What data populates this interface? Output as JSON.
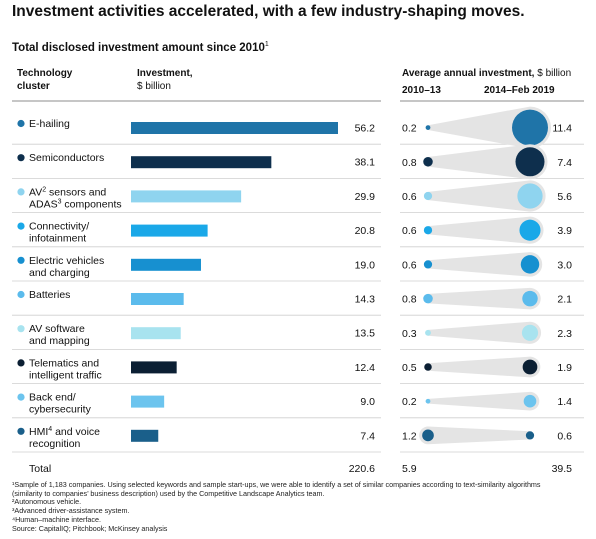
{
  "headline": "Investment activities accelerated, with a few industry-shaping moves.",
  "chart_data": {
    "type": "bar",
    "title": "Total disclosed investment amount since 2010",
    "title_sup": "1",
    "col_cluster": [
      "Technology",
      "cluster"
    ],
    "col_invest_bold": "Investment,",
    "col_invest_unit": "$ billion",
    "col_avg_bold": "Average annual investment,",
    "col_avg_unit": " $ billion",
    "period_a": "2010–13",
    "period_b": "2014–Feb 2019",
    "categories": [
      {
        "lines": [
          "E-hailing"
        ],
        "color": "#1f74a8",
        "investment": 56.2,
        "a": 0.2,
        "b": 11.4,
        "inv_label": "56.2",
        "a_label": "0.2",
        "b_label": "11.4"
      },
      {
        "lines": [
          "Semiconductors"
        ],
        "color": "#0e2f4d",
        "investment": 38.1,
        "a": 0.8,
        "b": 7.4,
        "inv_label": "38.1",
        "a_label": "0.8",
        "b_label": "7.4"
      },
      {
        "lines": [
          "AV",
          "sensors and",
          "ADAS",
          " components"
        ],
        "sups": [
          "2",
          "3"
        ],
        "color": "#8fd4ef",
        "investment": 29.9,
        "a": 0.6,
        "b": 5.6,
        "inv_label": "29.9",
        "a_label": "0.6",
        "b_label": "5.6"
      },
      {
        "lines": [
          "Connectivity/",
          "infotainment"
        ],
        "color": "#1aa8e8",
        "investment": 20.8,
        "a": 0.6,
        "b": 3.9,
        "inv_label": "20.8",
        "a_label": "0.6",
        "b_label": "3.9"
      },
      {
        "lines": [
          "Electric vehicles",
          "and charging"
        ],
        "color": "#1790d0",
        "investment": 19.0,
        "a": 0.6,
        "b": 3.0,
        "inv_label": "19.0",
        "a_label": "0.6",
        "b_label": "3.0"
      },
      {
        "lines": [
          "Batteries"
        ],
        "color": "#5bbbec",
        "investment": 14.3,
        "a": 0.8,
        "b": 2.1,
        "inv_label": "14.3",
        "a_label": "0.8",
        "b_label": "2.1"
      },
      {
        "lines": [
          "AV software",
          "and mapping"
        ],
        "color": "#a8e3ef",
        "investment": 13.5,
        "a": 0.3,
        "b": 2.3,
        "inv_label": "13.5",
        "a_label": "0.3",
        "b_label": "2.3"
      },
      {
        "lines": [
          "Telematics and",
          "intelligent traffic"
        ],
        "color": "#0b1f33",
        "investment": 12.4,
        "a": 0.5,
        "b": 1.9,
        "inv_label": "12.4",
        "a_label": "0.5",
        "b_label": "1.9"
      },
      {
        "lines": [
          "Back end/",
          "cybersecurity"
        ],
        "color": "#6cc4ee",
        "investment": 9.0,
        "a": 0.2,
        "b": 1.4,
        "inv_label": "9.0",
        "a_label": "0.2",
        "b_label": "1.4"
      },
      {
        "lines": [
          "HMI",
          " and voice",
          "recognition"
        ],
        "sups": [
          "4"
        ],
        "color": "#1a5f8a",
        "investment": 7.4,
        "a": 1.2,
        "b": 0.6,
        "inv_label": "7.4",
        "a_label": "1.2",
        "b_label": "0.6"
      }
    ],
    "total_label": "Total",
    "total_investment": "220.6",
    "total_a": "5.9",
    "total_b": "39.5"
  },
  "footnotes": [
    "¹Sample of 1,183 companies. Using selected keywords and sample start-ups, we were able to identify a set of similar companies according to text-similarity algorithms",
    "  (similarity to companies’ business description) used by the Competitive Landscape Analytics team.",
    "²Autonomous vehicle.",
    "³Advanced driver-assistance system.",
    "⁴Human–machine interface.",
    "  Source: CapitalIQ; Pitchbook; McKinsey analysis"
  ]
}
